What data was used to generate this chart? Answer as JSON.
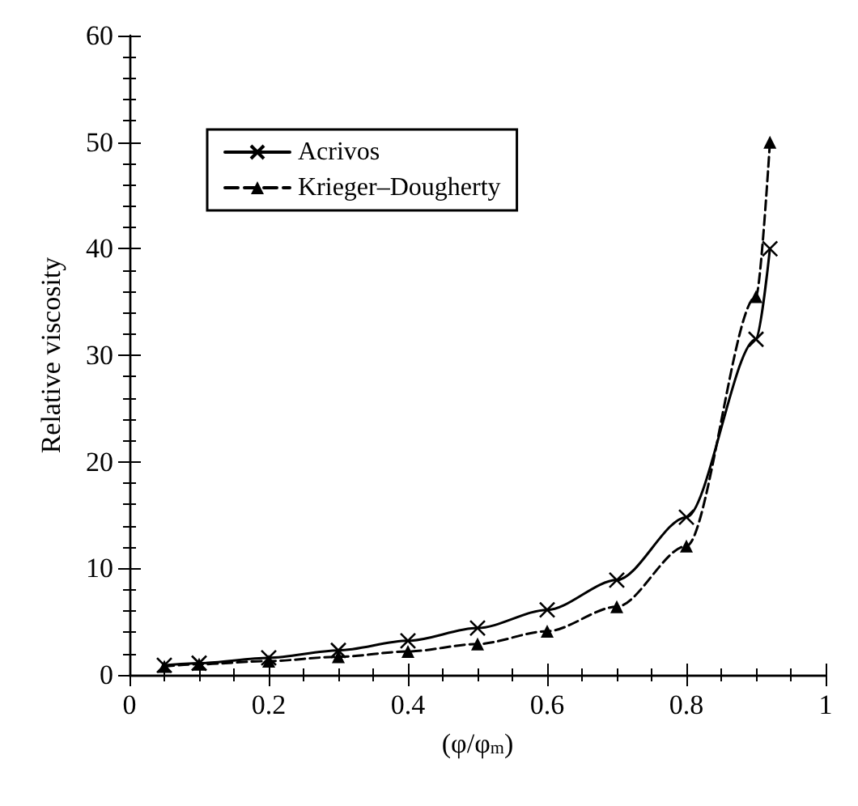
{
  "chart_data": {
    "type": "line",
    "xlabel": "(φ/φ$_{m}$)",
    "ylabel": "Relative viscosity",
    "x": [
      0.05,
      0.1,
      0.2,
      0.3,
      0.4,
      0.5,
      0.6,
      0.7,
      0.8,
      0.9,
      0.92
    ],
    "series": [
      {
        "name": "Acrivos",
        "color": "#000000",
        "marker": "cross",
        "line_style": "solid",
        "values": [
          0.9,
          1.1,
          1.6,
          2.3,
          3.2,
          4.4,
          6.1,
          8.9,
          14.8,
          31.5,
          40
        ]
      },
      {
        "name": "Krieger–Dougherty",
        "color": "#000000",
        "marker": "triangle",
        "line_style": "dashed",
        "values": [
          0.8,
          1.0,
          1.3,
          1.7,
          2.2,
          2.9,
          4.1,
          6.4,
          12.1,
          35.5,
          50
        ]
      }
    ],
    "xlim": [
      0,
      1
    ],
    "xticks": [
      0,
      0.2,
      0.4,
      0.6,
      0.8,
      1
    ],
    "ylim": [
      0,
      60
    ],
    "yticks": [
      0,
      10,
      20,
      30,
      40,
      50,
      60
    ],
    "grid": false,
    "legend": "top left"
  }
}
